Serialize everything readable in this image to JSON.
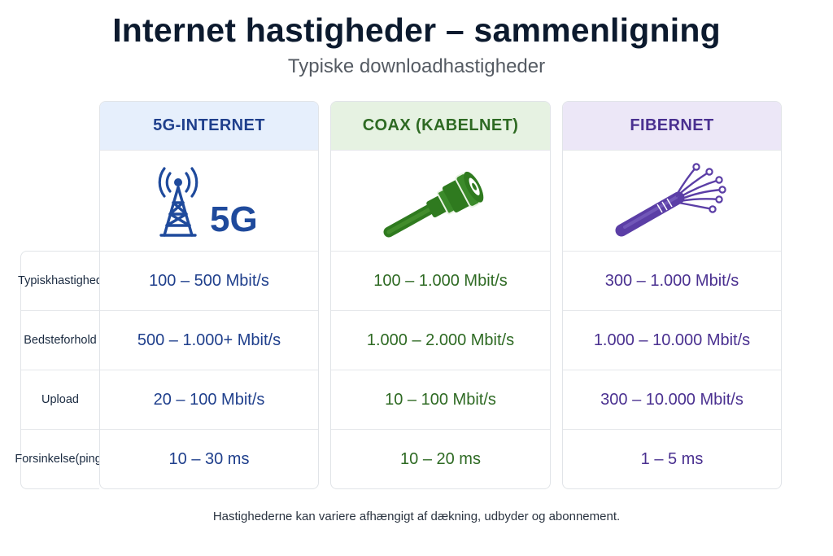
{
  "header": {
    "title": "Internet hastigheder – sammenligning",
    "subtitle": "Typiske downloadhastigheder"
  },
  "row_labels": [
    [
      "Typisk",
      "hastighed"
    ],
    [
      "Bedste",
      "forhold"
    ],
    [
      "Upload"
    ],
    [
      "Forsinkelse",
      "(ping)"
    ]
  ],
  "columns": [
    {
      "name": "5G-INTERNET",
      "icon": "cell-tower-5g-icon",
      "icon_text": "5G",
      "accent": "#1f3f8c",
      "header_bg": "#e6effc",
      "values": [
        "100 – 500 Mbit/s",
        "500 – 1.000+ Mbit/s",
        "20 – 100 Mbit/s",
        "10 – 30 ms"
      ]
    },
    {
      "name": "COAX (KABELNET)",
      "icon": "coax-cable-icon",
      "accent": "#2e6a23",
      "header_bg": "#e6f2e2",
      "values": [
        "100 – 1.000 Mbit/s",
        "1.000 – 2.000 Mbit/s",
        "10 – 100 Mbit/s",
        "10 – 20 ms"
      ]
    },
    {
      "name": "FIBERNET",
      "icon": "fiber-optic-cable-icon",
      "accent": "#4a3090",
      "header_bg": "#ece7f7",
      "values": [
        "300 – 1.000 Mbit/s",
        "1.000 – 10.000 Mbit/s",
        "300 – 10.000 Mbit/s",
        "1 – 5 ms"
      ]
    }
  ],
  "footnote": "Hastighederne kan variere afhængigt af dækning, udbyder og abonnement."
}
